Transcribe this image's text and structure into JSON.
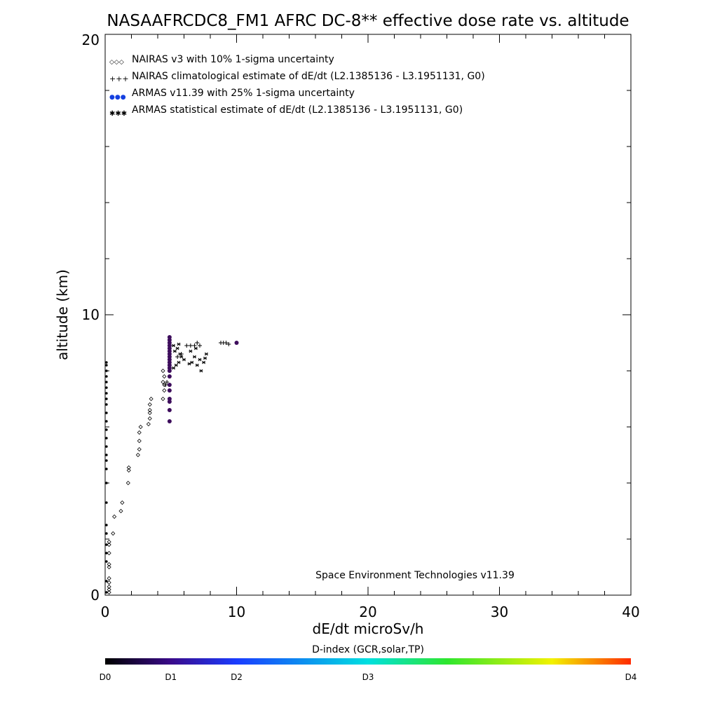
{
  "chart_data": {
    "type": "scatter",
    "title": "NASAAFRCDC8_FM1 AFRC DC-8** effective dose rate vs. altitude",
    "xlabel": "dE/dt microSv/h",
    "ylabel": "altitude (km)",
    "xlim": [
      0,
      40
    ],
    "ylim": [
      0,
      20
    ],
    "x_ticks": [
      "0",
      "10",
      "20",
      "30",
      "40"
    ],
    "y_ticks": [
      "0",
      "10",
      "20"
    ],
    "legend_placement": "top-left",
    "legend": [
      {
        "label": "NAIRAS v3 with 10% 1-sigma uncertainty",
        "symbol": "◇◇◇"
      },
      {
        "label": "NAIRAS climatological estimate of dE/dt (L2.1385136 - L3.1951131, G0)",
        "symbol": "+++"
      },
      {
        "label": "ARMAS v11.39 with 25% 1-sigma uncertainty",
        "symbol": "●●●"
      },
      {
        "label": "ARMAS statistical estimate of dE/dt (L2.1385136 - L3.1951131, G0)",
        "symbol": "✱✱✱"
      }
    ],
    "footer": "Space Environment Technologies v11.39",
    "colorbar": {
      "title": "D-index (GCR,solar,TP)",
      "labels": [
        "D0",
        "D1",
        "D2",
        "D3",
        "D4"
      ],
      "positions": [
        0,
        0.125,
        0.25,
        0.5,
        1.0
      ]
    },
    "series": [
      {
        "name": "NAIRAS v3 with 10% 1-sigma uncertainty",
        "marker": "diamond",
        "color": "#000000",
        "points": [
          [
            0.3,
            0.1
          ],
          [
            0.3,
            0.2
          ],
          [
            0.3,
            0.3
          ],
          [
            0.3,
            0.45
          ],
          [
            0.3,
            0.6
          ],
          [
            0.3,
            1.0
          ],
          [
            0.3,
            1.1
          ],
          [
            0.3,
            1.5
          ],
          [
            0.3,
            1.8
          ],
          [
            0.3,
            1.9
          ],
          [
            0.6,
            2.2
          ],
          [
            0.7,
            2.8
          ],
          [
            1.2,
            3.0
          ],
          [
            1.3,
            3.3
          ],
          [
            1.75,
            4.0
          ],
          [
            1.8,
            4.45
          ],
          [
            1.8,
            4.55
          ],
          [
            2.5,
            5.0
          ],
          [
            2.6,
            5.2
          ],
          [
            2.6,
            5.5
          ],
          [
            2.6,
            5.8
          ],
          [
            2.7,
            6.0
          ],
          [
            3.3,
            6.1
          ],
          [
            3.4,
            6.3
          ],
          [
            3.4,
            6.5
          ],
          [
            3.4,
            6.8
          ],
          [
            3.5,
            7.0
          ],
          [
            3.4,
            6.6
          ],
          [
            4.4,
            7.0
          ],
          [
            4.5,
            7.3
          ],
          [
            4.5,
            7.5
          ],
          [
            4.4,
            7.6
          ],
          [
            4.4,
            8.0
          ],
          [
            4.5,
            7.8
          ]
        ]
      },
      {
        "name": "NAIRAS climatological estimate of dE/dt (L2.1385136 - L3.1951131, G0)",
        "marker": "plus",
        "color": "#000000",
        "points": [
          [
            4.6,
            7.5
          ],
          [
            4.7,
            7.6
          ],
          [
            6.2,
            8.9
          ],
          [
            6.5,
            8.9
          ],
          [
            6.8,
            8.9
          ],
          [
            7.0,
            9.0
          ],
          [
            7.2,
            8.9
          ],
          [
            8.8,
            9.0
          ],
          [
            9.0,
            9.0
          ],
          [
            9.2,
            9.0
          ],
          [
            9.4,
            8.95
          ],
          [
            5.5,
            8.5
          ],
          [
            5.8,
            8.6
          ]
        ]
      },
      {
        "name": "ARMAS v11.39 with 25% 1-sigma uncertainty",
        "marker": "circle",
        "color": "#3d0d5c",
        "points": [
          [
            4.9,
            6.2
          ],
          [
            4.9,
            6.6
          ],
          [
            4.9,
            6.9
          ],
          [
            4.9,
            7.0
          ],
          [
            4.9,
            7.3
          ],
          [
            4.9,
            7.5
          ],
          [
            4.9,
            7.8
          ],
          [
            4.9,
            8.0
          ],
          [
            4.9,
            8.1
          ],
          [
            4.9,
            8.2
          ],
          [
            4.9,
            8.3
          ],
          [
            4.9,
            8.4
          ],
          [
            4.9,
            8.5
          ],
          [
            4.9,
            8.6
          ],
          [
            4.9,
            8.7
          ],
          [
            4.9,
            8.8
          ],
          [
            4.9,
            8.9
          ],
          [
            4.9,
            9.0
          ],
          [
            4.9,
            9.1
          ],
          [
            4.9,
            9.2
          ],
          [
            10.0,
            9.0
          ]
        ]
      },
      {
        "name": "ARMAS statistical estimate of dE/dt (L2.1385136 - L3.1951131, G0)",
        "marker": "asterisk",
        "color": "#000000",
        "points": [
          [
            5.2,
            8.1
          ],
          [
            5.4,
            8.2
          ],
          [
            5.6,
            8.3
          ],
          [
            5.8,
            8.5
          ],
          [
            5.3,
            8.7
          ],
          [
            5.5,
            8.8
          ],
          [
            5.7,
            8.6
          ],
          [
            6.0,
            8.4
          ],
          [
            5.2,
            8.9
          ],
          [
            5.6,
            8.95
          ],
          [
            6.4,
            8.25
          ],
          [
            6.6,
            8.3
          ],
          [
            6.8,
            8.5
          ],
          [
            7.0,
            8.2
          ],
          [
            7.2,
            8.4
          ],
          [
            6.5,
            8.7
          ],
          [
            6.9,
            8.8
          ],
          [
            7.5,
            8.3
          ],
          [
            7.6,
            8.45
          ],
          [
            7.7,
            8.6
          ],
          [
            7.3,
            8.0
          ]
        ]
      },
      {
        "name": "zero-axis markers",
        "marker": "dot",
        "color": "#000000",
        "points": [
          [
            0.1,
            0.1
          ],
          [
            0.1,
            0.5
          ],
          [
            0.1,
            1.2
          ],
          [
            0.1,
            1.5
          ],
          [
            0.1,
            1.8
          ],
          [
            0.1,
            2.2
          ],
          [
            0.1,
            2.5
          ],
          [
            0.1,
            3.3
          ],
          [
            0.1,
            4.0
          ],
          [
            0.1,
            4.5
          ],
          [
            0.1,
            4.8
          ],
          [
            0.1,
            5.0
          ],
          [
            0.1,
            5.3
          ],
          [
            0.1,
            5.6
          ],
          [
            0.1,
            5.9
          ],
          [
            0.1,
            6.2
          ],
          [
            0.1,
            6.5
          ],
          [
            0.1,
            6.8
          ],
          [
            0.1,
            7.0
          ],
          [
            0.1,
            7.2
          ],
          [
            0.1,
            7.4
          ],
          [
            0.1,
            7.6
          ],
          [
            0.1,
            7.8
          ],
          [
            0.1,
            8.0
          ],
          [
            0.1,
            8.2
          ],
          [
            0.1,
            8.3
          ]
        ]
      }
    ]
  }
}
